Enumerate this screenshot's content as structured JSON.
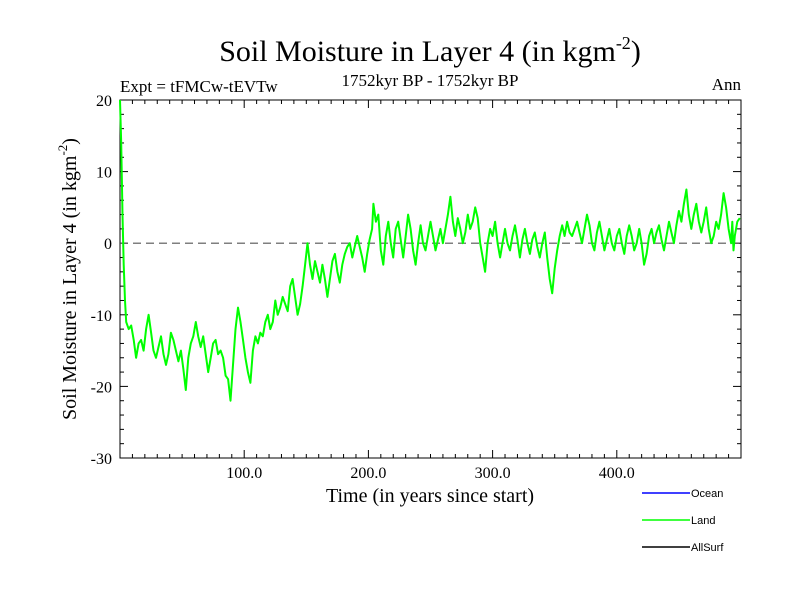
{
  "chart_data": {
    "type": "line",
    "title": "Soil Moisture in Layer 4 (in kgm",
    "title_sup": "-2",
    "title_close": ")",
    "subtitle_left": "Expt = tFMCw-tEVTw",
    "subtitle_center": "1752kyr BP - 1752kyr BP",
    "subtitle_right": "Ann",
    "xlabel": "Time (in years since start)",
    "ylabel": "Soil Moisture in Layer 4 (in kgm",
    "ylabel_sup": "-2",
    "ylabel_close": ")",
    "xlim": [
      0,
      500
    ],
    "ylim": [
      -30,
      20
    ],
    "x_ticks": [
      100,
      200,
      300,
      400
    ],
    "x_tick_labels": [
      "100.0",
      "200.0",
      "300.0",
      "400.0"
    ],
    "y_ticks": [
      20,
      10,
      0,
      -10,
      -20,
      -30
    ],
    "y_tick_labels": [
      "20",
      "10",
      "0",
      "-10",
      "-20",
      "-30"
    ],
    "reference_line": 0,
    "legend_position": "bottom-right",
    "series": [
      {
        "name": "Ocean",
        "color": "#0000ff",
        "points": []
      },
      {
        "name": "Land",
        "color": "#00ff00",
        "points": [
          [
            0,
            20
          ],
          [
            1,
            14
          ],
          [
            2,
            4
          ],
          [
            3,
            -3
          ],
          [
            4,
            -8
          ],
          [
            5,
            -11
          ],
          [
            7,
            -12
          ],
          [
            9,
            -11.5
          ],
          [
            11,
            -13.5
          ],
          [
            13,
            -16
          ],
          [
            15,
            -14
          ],
          [
            17,
            -13.5
          ],
          [
            19,
            -15
          ],
          [
            21,
            -12
          ],
          [
            23,
            -10
          ],
          [
            25,
            -12.5
          ],
          [
            27,
            -15
          ],
          [
            29,
            -16
          ],
          [
            31,
            -14.5
          ],
          [
            33,
            -13
          ],
          [
            35,
            -15.5
          ],
          [
            37,
            -17
          ],
          [
            39,
            -15.5
          ],
          [
            41,
            -12.5
          ],
          [
            43,
            -13.5
          ],
          [
            45,
            -15
          ],
          [
            47,
            -16.5
          ],
          [
            49,
            -15
          ],
          [
            51,
            -17.5
          ],
          [
            53,
            -20.5
          ],
          [
            55,
            -16
          ],
          [
            57,
            -14
          ],
          [
            59,
            -13
          ],
          [
            61,
            -11
          ],
          [
            63,
            -13
          ],
          [
            65,
            -14.5
          ],
          [
            67,
            -13
          ],
          [
            69,
            -15.5
          ],
          [
            71,
            -18
          ],
          [
            73,
            -16
          ],
          [
            75,
            -14
          ],
          [
            77,
            -13.5
          ],
          [
            79,
            -15.5
          ],
          [
            81,
            -15
          ],
          [
            83,
            -16
          ],
          [
            85,
            -18.5
          ],
          [
            87,
            -19
          ],
          [
            89,
            -22
          ],
          [
            91,
            -17
          ],
          [
            93,
            -12
          ],
          [
            95,
            -9
          ],
          [
            97,
            -11
          ],
          [
            99,
            -13.5
          ],
          [
            101,
            -16
          ],
          [
            103,
            -18
          ],
          [
            105,
            -19.5
          ],
          [
            107,
            -15
          ],
          [
            109,
            -13
          ],
          [
            111,
            -14
          ],
          [
            113,
            -12.5
          ],
          [
            115,
            -13
          ],
          [
            117,
            -11
          ],
          [
            119,
            -10
          ],
          [
            121,
            -12
          ],
          [
            123,
            -11
          ],
          [
            125,
            -8
          ],
          [
            127,
            -10
          ],
          [
            129,
            -9
          ],
          [
            131,
            -7.5
          ],
          [
            133,
            -8.5
          ],
          [
            135,
            -9.5
          ],
          [
            137,
            -6
          ],
          [
            139,
            -5
          ],
          [
            141,
            -7.5
          ],
          [
            143,
            -10
          ],
          [
            145,
            -8.5
          ],
          [
            147,
            -6
          ],
          [
            149,
            -3
          ],
          [
            151,
            0
          ],
          [
            153,
            -3
          ],
          [
            155,
            -5
          ],
          [
            157,
            -2.5
          ],
          [
            159,
            -4
          ],
          [
            161,
            -5.5
          ],
          [
            163,
            -3
          ],
          [
            165,
            -5
          ],
          [
            167,
            -7.5
          ],
          [
            169,
            -5
          ],
          [
            171,
            -2.5
          ],
          [
            173,
            -1.5
          ],
          [
            175,
            -4
          ],
          [
            177,
            -5.5
          ],
          [
            179,
            -3
          ],
          [
            181,
            -1.5
          ],
          [
            183,
            -0.5
          ],
          [
            185,
            0
          ],
          [
            187,
            -2
          ],
          [
            189,
            -0.5
          ],
          [
            191,
            1
          ],
          [
            193,
            -0.5
          ],
          [
            195,
            -2
          ],
          [
            197,
            -4
          ],
          [
            199,
            -1.5
          ],
          [
            201,
            0.5
          ],
          [
            203,
            2
          ],
          [
            204,
            5.5
          ],
          [
            206,
            3
          ],
          [
            208,
            4
          ],
          [
            210,
            -1
          ],
          [
            212,
            -3
          ],
          [
            214,
            1
          ],
          [
            216,
            3
          ],
          [
            218,
            0
          ],
          [
            220,
            -2
          ],
          [
            222,
            2
          ],
          [
            224,
            3
          ],
          [
            226,
            0.5
          ],
          [
            228,
            -2
          ],
          [
            230,
            1
          ],
          [
            232,
            4
          ],
          [
            234,
            2
          ],
          [
            236,
            -1
          ],
          [
            238,
            -3
          ],
          [
            240,
            0
          ],
          [
            242,
            2.5
          ],
          [
            244,
            0
          ],
          [
            246,
            -1
          ],
          [
            248,
            1
          ],
          [
            250,
            3
          ],
          [
            252,
            1
          ],
          [
            254,
            -1
          ],
          [
            256,
            0.5
          ],
          [
            258,
            2
          ],
          [
            260,
            0
          ],
          [
            262,
            2
          ],
          [
            264,
            4
          ],
          [
            266,
            6.5
          ],
          [
            268,
            3
          ],
          [
            270,
            1
          ],
          [
            272,
            3.5
          ],
          [
            274,
            2
          ],
          [
            276,
            0
          ],
          [
            278,
            1.5
          ],
          [
            280,
            4
          ],
          [
            282,
            2
          ],
          [
            284,
            3
          ],
          [
            286,
            5
          ],
          [
            288,
            3.5
          ],
          [
            290,
            0
          ],
          [
            292,
            -2
          ],
          [
            294,
            -4
          ],
          [
            296,
            0
          ],
          [
            298,
            2
          ],
          [
            300,
            1
          ],
          [
            302,
            3
          ],
          [
            304,
            0
          ],
          [
            306,
            -2
          ],
          [
            308,
            0
          ],
          [
            310,
            2
          ],
          [
            312,
            0
          ],
          [
            314,
            -1
          ],
          [
            316,
            1
          ],
          [
            318,
            2.5
          ],
          [
            320,
            0.5
          ],
          [
            322,
            -2
          ],
          [
            324,
            0.5
          ],
          [
            326,
            2
          ],
          [
            328,
            0
          ],
          [
            330,
            -1.5
          ],
          [
            332,
            0.5
          ],
          [
            334,
            1.5
          ],
          [
            336,
            -0.5
          ],
          [
            338,
            -2
          ],
          [
            340,
            0
          ],
          [
            342,
            1.5
          ],
          [
            344,
            -2
          ],
          [
            346,
            -5
          ],
          [
            348,
            -7
          ],
          [
            350,
            -3.5
          ],
          [
            352,
            -1
          ],
          [
            354,
            1
          ],
          [
            356,
            2.5
          ],
          [
            358,
            1
          ],
          [
            360,
            3
          ],
          [
            362,
            1.5
          ],
          [
            364,
            1
          ],
          [
            366,
            2
          ],
          [
            368,
            3
          ],
          [
            370,
            1.5
          ],
          [
            372,
            0
          ],
          [
            374,
            2
          ],
          [
            376,
            4
          ],
          [
            378,
            2.5
          ],
          [
            380,
            0
          ],
          [
            382,
            -1
          ],
          [
            384,
            1.5
          ],
          [
            386,
            3
          ],
          [
            388,
            1
          ],
          [
            390,
            -1
          ],
          [
            392,
            0.5
          ],
          [
            394,
            2
          ],
          [
            396,
            0
          ],
          [
            398,
            -1
          ],
          [
            400,
            1
          ],
          [
            402,
            2
          ],
          [
            404,
            0
          ],
          [
            406,
            -1.5
          ],
          [
            408,
            1
          ],
          [
            410,
            2.5
          ],
          [
            412,
            1
          ],
          [
            414,
            -1
          ],
          [
            416,
            0
          ],
          [
            418,
            2
          ],
          [
            420,
            0
          ],
          [
            422,
            -3
          ],
          [
            424,
            -1.5
          ],
          [
            426,
            1
          ],
          [
            428,
            2
          ],
          [
            430,
            0
          ],
          [
            432,
            1.5
          ],
          [
            434,
            2.5
          ],
          [
            436,
            0.5
          ],
          [
            438,
            -1
          ],
          [
            440,
            1
          ],
          [
            442,
            3
          ],
          [
            444,
            1.5
          ],
          [
            446,
            0
          ],
          [
            448,
            2.5
          ],
          [
            450,
            4.5
          ],
          [
            452,
            3
          ],
          [
            454,
            5.5
          ],
          [
            456,
            7.5
          ],
          [
            458,
            4
          ],
          [
            460,
            2
          ],
          [
            462,
            4
          ],
          [
            464,
            5.5
          ],
          [
            466,
            3
          ],
          [
            468,
            1.5
          ],
          [
            470,
            3
          ],
          [
            472,
            5
          ],
          [
            474,
            2
          ],
          [
            476,
            0
          ],
          [
            478,
            1
          ],
          [
            480,
            3
          ],
          [
            482,
            2
          ],
          [
            484,
            4
          ],
          [
            486,
            7
          ],
          [
            488,
            5
          ],
          [
            490,
            2
          ],
          [
            492,
            0
          ],
          [
            493,
            3
          ],
          [
            494,
            -1
          ],
          [
            495,
            1
          ],
          [
            497,
            3
          ],
          [
            499,
            3.5
          ]
        ]
      },
      {
        "name": "AllSurf",
        "color": "#000000",
        "points": []
      }
    ]
  }
}
